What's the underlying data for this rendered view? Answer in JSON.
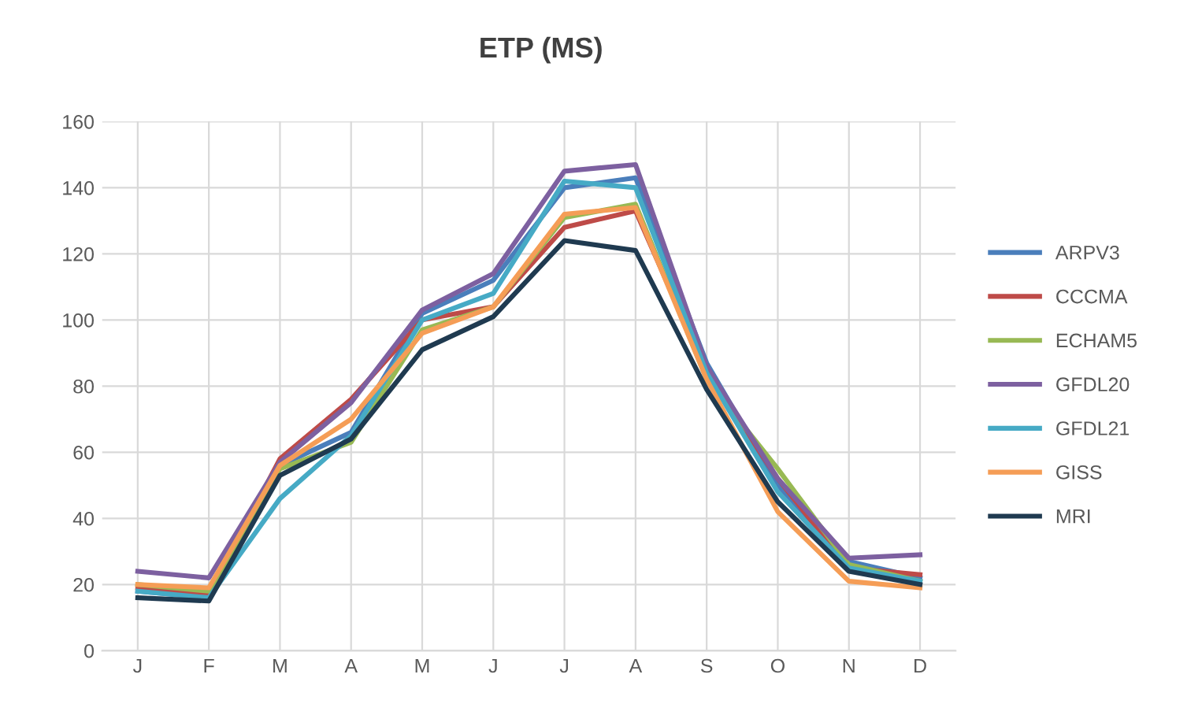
{
  "chart_data": {
    "type": "line",
    "title": "ETP (MS)",
    "categories": [
      "J",
      "F",
      "M",
      "A",
      "M",
      "J",
      "J",
      "A",
      "S",
      "O",
      "N",
      "D"
    ],
    "series": [
      {
        "name": "ARPV3",
        "color": "#4a7ebb",
        "values": [
          18,
          16,
          56,
          66,
          102,
          112,
          140,
          143,
          87,
          50,
          27,
          22
        ]
      },
      {
        "name": "CCCMA",
        "color": "#be4b48",
        "values": [
          19,
          17,
          58,
          76,
          100,
          104,
          128,
          133,
          84,
          52,
          25,
          23
        ]
      },
      {
        "name": "ECHAM5",
        "color": "#98b954",
        "values": [
          20,
          18,
          55,
          63,
          97,
          104,
          131,
          135,
          82,
          55,
          26,
          21
        ]
      },
      {
        "name": "GFDL20",
        "color": "#7d60a0",
        "values": [
          24,
          22,
          57,
          75,
          103,
          114,
          145,
          147,
          86,
          52,
          28,
          29
        ]
      },
      {
        "name": "GFDL21",
        "color": "#46aac5",
        "values": [
          18,
          16,
          46,
          65,
          100,
          108,
          142,
          140,
          84,
          48,
          25,
          21
        ]
      },
      {
        "name": "GISS",
        "color": "#f59d56",
        "values": [
          20,
          19,
          56,
          70,
          96,
          104,
          132,
          134,
          82,
          42,
          21,
          19
        ]
      },
      {
        "name": "MRI",
        "color": "#1f3a50",
        "values": [
          16,
          15,
          53,
          64,
          91,
          101,
          124,
          121,
          79,
          45,
          24,
          20
        ]
      }
    ],
    "ylim": [
      0,
      160
    ],
    "yticks": [
      0,
      20,
      40,
      60,
      80,
      100,
      120,
      140,
      160
    ],
    "grid": true,
    "legend": "right"
  }
}
